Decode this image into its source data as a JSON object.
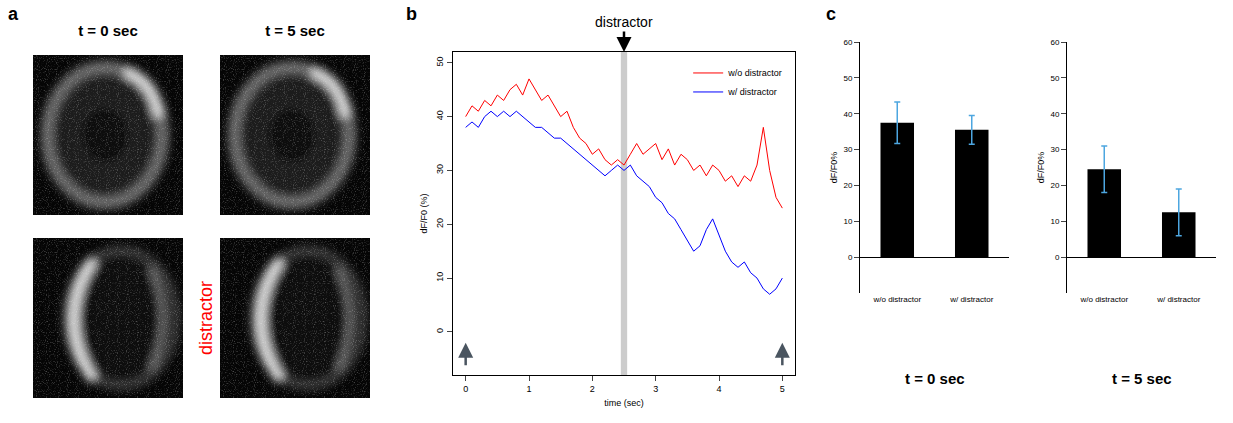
{
  "chart_data": [
    {
      "type": "image",
      "panel": "a",
      "columns": [
        "t = 0 sec",
        "t = 5 sec"
      ],
      "row_label": "distractor"
    },
    {
      "type": "line",
      "panel": "b",
      "x": [
        0,
        0.1,
        0.2,
        0.3,
        0.4,
        0.5,
        0.6,
        0.7,
        0.8,
        0.9,
        1.0,
        1.1,
        1.2,
        1.3,
        1.4,
        1.5,
        1.6,
        1.7,
        1.8,
        1.9,
        2.0,
        2.1,
        2.2,
        2.3,
        2.4,
        2.5,
        2.6,
        2.7,
        2.8,
        2.9,
        3.0,
        3.1,
        3.2,
        3.3,
        3.4,
        3.5,
        3.6,
        3.7,
        3.8,
        3.9,
        4.0,
        4.1,
        4.2,
        4.3,
        4.4,
        4.5,
        4.6,
        4.7,
        4.8,
        4.9,
        5.0
      ],
      "series": [
        {
          "name": "w/o distractor",
          "color": "#ff0000",
          "values": [
            40,
            42,
            41,
            43,
            42,
            44,
            43,
            45,
            46,
            44,
            47,
            45,
            43,
            44,
            42,
            40,
            41,
            38,
            36,
            35,
            33,
            34,
            32,
            31,
            32,
            31,
            33,
            35,
            33,
            34,
            35,
            32,
            34,
            31,
            33,
            32,
            30,
            31,
            29,
            31,
            30,
            28,
            29,
            27,
            29,
            28,
            31,
            38,
            30,
            25,
            23
          ]
        },
        {
          "name": "w/ distractor",
          "color": "#0000ff",
          "values": [
            38,
            39,
            38,
            40,
            41,
            40,
            41,
            40,
            41,
            40,
            39,
            38,
            38,
            37,
            36,
            36,
            35,
            34,
            33,
            32,
            31,
            30,
            29,
            30,
            31,
            30,
            31,
            29,
            28,
            27,
            25,
            24,
            22,
            21,
            19,
            17,
            15,
            16,
            19,
            21,
            18,
            15,
            13,
            12,
            13,
            11,
            10,
            8,
            7,
            8,
            10
          ]
        }
      ],
      "xlim": [
        -0.2,
        5.2
      ],
      "ylim": [
        -8,
        52
      ],
      "xticks": [
        0,
        1,
        2,
        3,
        4,
        5
      ],
      "yticks": [
        0,
        10,
        20,
        30,
        40,
        50
      ],
      "x_label": "time (sec)",
      "y_label": "dF/F0 (%)",
      "legend": "top right",
      "annotations": [
        {
          "text": "distractor",
          "x": 2.5,
          "band": [
            2.45,
            2.55
          ]
        }
      ],
      "arrows_x": [
        0,
        5
      ]
    },
    {
      "type": "bar",
      "panel": "c",
      "title": "t = 0 sec",
      "categories": [
        "w/o distractor",
        "w/ distractor"
      ],
      "values": [
        37.5,
        35.5
      ],
      "errors": [
        5.8,
        4
      ],
      "color": "#000000",
      "ylim": [
        -10,
        60
      ],
      "yticks": [
        0,
        10,
        20,
        30,
        40,
        50,
        60
      ],
      "y_label": "dF/F0%"
    },
    {
      "type": "bar",
      "title": "t = 5 sec",
      "categories": [
        "w/o distractor",
        "w/ distractor"
      ],
      "values": [
        24.5,
        12.5
      ],
      "errors": [
        6.5,
        6.5
      ],
      "color": "#000000",
      "ylim": [
        -10,
        60
      ],
      "yticks": [
        0,
        10,
        20,
        30,
        40,
        50,
        60
      ],
      "y_label": "dF/F0%"
    }
  ]
}
